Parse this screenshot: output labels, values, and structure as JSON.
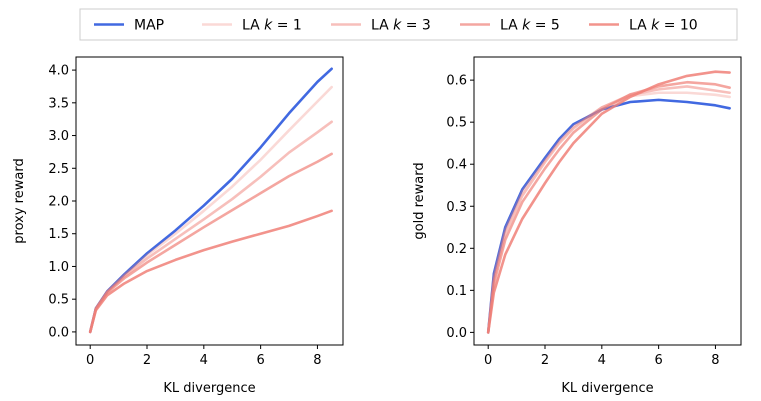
{
  "chart_data": {
    "legend": {
      "placement": "top-center",
      "entries": [
        {
          "label": "MAP",
          "color": "#4169e1",
          "alpha": 1.0
        },
        {
          "label": "LA k = 1",
          "label_prefix": "LA ",
          "label_var": "k",
          "label_suffix": " = 1",
          "color": "#f08078",
          "alpha": 0.3
        },
        {
          "label": "LA k = 3",
          "label_prefix": "LA ",
          "label_var": "k",
          "label_suffix": " = 3",
          "color": "#f08078",
          "alpha": 0.5
        },
        {
          "label": "LA k = 5",
          "label_prefix": "LA ",
          "label_var": "k",
          "label_suffix": " = 5",
          "color": "#f08078",
          "alpha": 0.7
        },
        {
          "label": "LA k = 10",
          "label_prefix": "LA ",
          "label_var": "k",
          "label_suffix": " = 10",
          "color": "#f08078",
          "alpha": 0.85
        }
      ]
    },
    "panels": [
      {
        "type": "line",
        "xlabel": "KL divergence",
        "ylabel": "proxy reward",
        "xlim": [
          -0.5,
          8.9
        ],
        "ylim": [
          -0.2,
          4.2
        ],
        "xticks": [
          0,
          2,
          4,
          6,
          8
        ],
        "yticks": [
          0.0,
          0.5,
          1.0,
          1.5,
          2.0,
          2.5,
          3.0,
          3.5,
          4.0
        ],
        "ytick_labels": [
          "0.0",
          "0.5",
          "1.0",
          "1.5",
          "2.0",
          "2.5",
          "3.0",
          "3.5",
          "4.0"
        ],
        "grid": false,
        "series": [
          {
            "name": "MAP",
            "x": [
              0,
              0.2,
              0.6,
              1.2,
              2,
              3,
              4,
              5,
              6,
              7,
              8,
              8.5
            ],
            "y": [
              0.0,
              0.36,
              0.62,
              0.88,
              1.2,
              1.55,
              1.93,
              2.34,
              2.82,
              3.34,
              3.82,
              4.02
            ]
          },
          {
            "name": "LA k = 1",
            "x": [
              0,
              0.2,
              0.6,
              1.2,
              2,
              3,
              4,
              5,
              6,
              7,
              8,
              8.5
            ],
            "y": [
              0.0,
              0.36,
              0.62,
              0.87,
              1.17,
              1.5,
              1.85,
              2.22,
              2.63,
              3.08,
              3.52,
              3.74
            ]
          },
          {
            "name": "LA k = 3",
            "x": [
              0,
              0.2,
              0.6,
              1.2,
              2,
              3,
              4,
              5,
              6,
              7,
              8,
              8.5
            ],
            "y": [
              0.0,
              0.36,
              0.61,
              0.85,
              1.12,
              1.42,
              1.72,
              2.03,
              2.37,
              2.74,
              3.05,
              3.21
            ]
          },
          {
            "name": "LA k = 5",
            "x": [
              0,
              0.2,
              0.6,
              1.2,
              2,
              3,
              4,
              5,
              6,
              7,
              8,
              8.5
            ],
            "y": [
              0.0,
              0.35,
              0.6,
              0.82,
              1.06,
              1.33,
              1.6,
              1.86,
              2.12,
              2.38,
              2.6,
              2.72
            ]
          },
          {
            "name": "LA k = 10",
            "x": [
              0,
              0.2,
              0.6,
              1.2,
              2,
              3,
              4,
              5,
              6,
              7,
              8,
              8.5
            ],
            "y": [
              0.0,
              0.33,
              0.56,
              0.74,
              0.93,
              1.1,
              1.25,
              1.38,
              1.5,
              1.62,
              1.77,
              1.85
            ]
          }
        ]
      },
      {
        "type": "line",
        "xlabel": "KL divergence",
        "ylabel": "gold reward",
        "xlim": [
          -0.5,
          8.9
        ],
        "ylim": [
          -0.03,
          0.655
        ],
        "xticks": [
          0,
          2,
          4,
          6,
          8
        ],
        "yticks": [
          0.0,
          0.1,
          0.2,
          0.3,
          0.4,
          0.5,
          0.6
        ],
        "ytick_labels": [
          "0.0",
          "0.1",
          "0.2",
          "0.3",
          "0.4",
          "0.5",
          "0.6"
        ],
        "grid": false,
        "series": [
          {
            "name": "MAP",
            "x": [
              0,
              0.2,
              0.6,
              1.2,
              2,
              2.5,
              3,
              4,
              5,
              6,
              7,
              8,
              8.5
            ],
            "y": [
              0.0,
              0.14,
              0.25,
              0.34,
              0.415,
              0.46,
              0.495,
              0.53,
              0.548,
              0.553,
              0.548,
              0.54,
              0.533
            ]
          },
          {
            "name": "LA k = 1",
            "x": [
              0,
              0.2,
              0.6,
              1.2,
              2,
              2.5,
              3,
              4,
              5,
              6,
              7,
              8,
              8.5
            ],
            "y": [
              0.0,
              0.135,
              0.245,
              0.335,
              0.41,
              0.455,
              0.49,
              0.535,
              0.562,
              0.57,
              0.57,
              0.565,
              0.56
            ]
          },
          {
            "name": "LA k = 3",
            "x": [
              0,
              0.2,
              0.6,
              1.2,
              2,
              2.5,
              3,
              4,
              5,
              6,
              7,
              8,
              8.5
            ],
            "y": [
              0.0,
              0.125,
              0.235,
              0.325,
              0.405,
              0.45,
              0.485,
              0.535,
              0.565,
              0.578,
              0.585,
              0.575,
              0.57
            ]
          },
          {
            "name": "LA k = 5",
            "x": [
              0,
              0.2,
              0.6,
              1.2,
              2,
              2.5,
              3,
              4,
              5,
              6,
              7,
              8,
              8.5
            ],
            "y": [
              0.0,
              0.115,
              0.22,
              0.31,
              0.39,
              0.435,
              0.475,
              0.53,
              0.566,
              0.585,
              0.595,
              0.59,
              0.582
            ]
          },
          {
            "name": "LA k = 10",
            "x": [
              0,
              0.2,
              0.6,
              1.2,
              2,
              2.5,
              3,
              4,
              5,
              6,
              7,
              8,
              8.5
            ],
            "y": [
              0.0,
              0.095,
              0.185,
              0.27,
              0.355,
              0.405,
              0.45,
              0.52,
              0.56,
              0.59,
              0.61,
              0.62,
              0.618
            ]
          }
        ]
      }
    ]
  }
}
